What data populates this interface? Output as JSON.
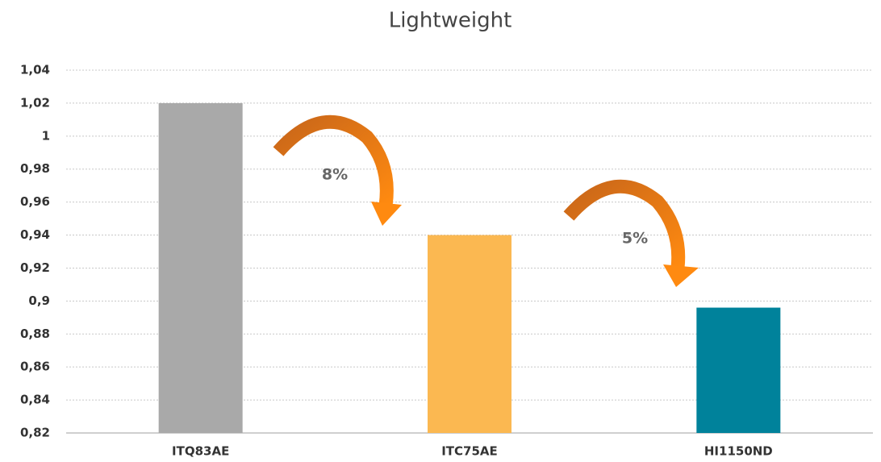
{
  "chart_data": {
    "type": "bar",
    "title": "Lightweight",
    "categories": [
      "ITQ83AE",
      "ITC75AE",
      "HI1150ND"
    ],
    "values": [
      1.02,
      0.94,
      0.896
    ],
    "colors": [
      "#a9a9a9",
      "#fbb851",
      "#00829b"
    ],
    "ylim": [
      0.82,
      1.04
    ],
    "yticks": [
      {
        "value": 0.82,
        "label": "0,82"
      },
      {
        "value": 0.84,
        "label": "0,84"
      },
      {
        "value": 0.86,
        "label": "0,86"
      },
      {
        "value": 0.88,
        "label": "0,88"
      },
      {
        "value": 0.9,
        "label": "0,9"
      },
      {
        "value": 0.92,
        "label": "0,92"
      },
      {
        "value": 0.94,
        "label": "0,94"
      },
      {
        "value": 0.96,
        "label": "0,96"
      },
      {
        "value": 0.98,
        "label": "0,98"
      },
      1,
      {
        "value": 1.02,
        "label": "1,02"
      },
      {
        "value": 1.04,
        "label": "1,04"
      }
    ],
    "grid": true,
    "annotations": [
      "8%",
      "5%"
    ]
  }
}
